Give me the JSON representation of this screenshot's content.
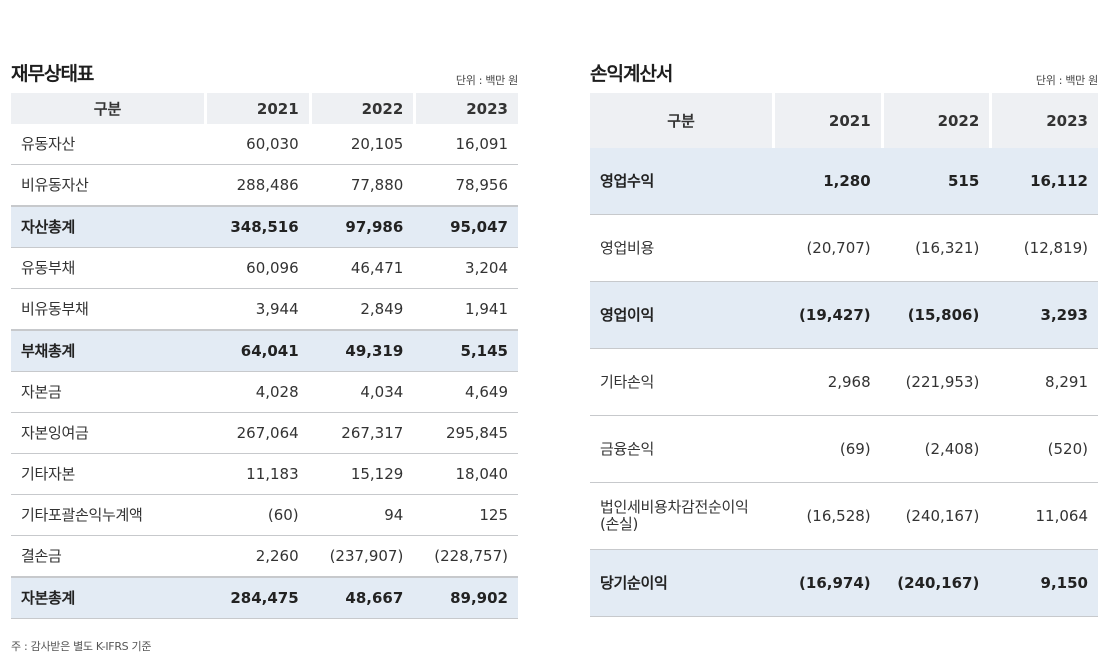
{
  "balance_sheet": {
    "title": "재무상태표",
    "unit": "단위 : 백만 원",
    "headers": [
      "구분",
      "2021",
      "2022",
      "2023"
    ],
    "rows": [
      {
        "label": "유동자산",
        "values": [
          "60,030",
          "20,105",
          "16,091"
        ],
        "total": false
      },
      {
        "label": "비유동자산",
        "values": [
          "288,486",
          "77,880",
          "78,956"
        ],
        "total": false
      },
      {
        "label": "자산총계",
        "values": [
          "348,516",
          "97,986",
          "95,047"
        ],
        "total": true
      },
      {
        "label": "유동부채",
        "values": [
          "60,096",
          "46,471",
          "3,204"
        ],
        "total": false
      },
      {
        "label": "비유동부채",
        "values": [
          "3,944",
          "2,849",
          "1,941"
        ],
        "total": false
      },
      {
        "label": "부채총계",
        "values": [
          "64,041",
          "49,319",
          "5,145"
        ],
        "total": true
      },
      {
        "label": "자본금",
        "values": [
          "4,028",
          "4,034",
          "4,649"
        ],
        "total": false
      },
      {
        "label": " 자본잉여금",
        "values": [
          "267,064",
          "267,317",
          "295,845"
        ],
        "total": false
      },
      {
        "label": "기타자본",
        "values": [
          "11,183",
          "15,129",
          "18,040"
        ],
        "total": false
      },
      {
        "label": "기타포괄손익누계액",
        "values": [
          "(60)",
          "94",
          "125"
        ],
        "total": false
      },
      {
        "label": "결손금",
        "values": [
          "2,260",
          "(237,907)",
          "(228,757)"
        ],
        "total": false
      },
      {
        "label": "자본총계",
        "values": [
          "284,475",
          "48,667",
          "89,902"
        ],
        "total": true
      }
    ]
  },
  "income_statement": {
    "title": "손익계산서",
    "unit": "단위 : 백만 원",
    "headers": [
      "구분",
      "2021",
      "2022",
      "2023"
    ],
    "rows": [
      {
        "label": "영업수익",
        "values": [
          "1,280",
          "515",
          "16,112"
        ],
        "total": true
      },
      {
        "label": "영업비용",
        "values": [
          "(20,707)",
          "(16,321)",
          "(12,819)"
        ],
        "total": false
      },
      {
        "label": "영업이익",
        "values": [
          "(19,427)",
          "(15,806)",
          "3,293"
        ],
        "total": true
      },
      {
        "label": "기타손익",
        "values": [
          "2,968",
          "(221,953)",
          "8,291"
        ],
        "total": false
      },
      {
        "label": "금융손익",
        "values": [
          "(69)",
          "(2,408)",
          "(520)"
        ],
        "total": false
      },
      {
        "label": "법인세비용차감전순이익 (손실)",
        "values": [
          "(16,528)",
          "(240,167)",
          "11,064"
        ],
        "total": false
      },
      {
        "label": "당기순이익",
        "values": [
          "(16,974)",
          "(240,167)",
          "9,150"
        ],
        "total": true
      }
    ]
  },
  "footnote": "주 : 감사받은 별도 K-IFRS 기준"
}
